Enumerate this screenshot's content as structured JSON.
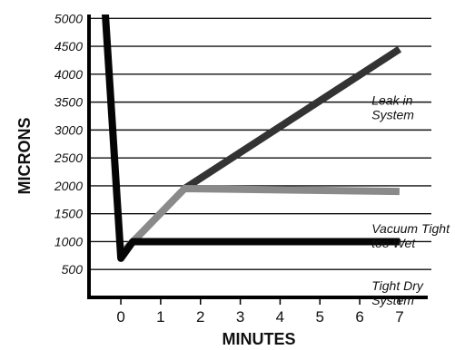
{
  "chart_data": {
    "type": "line",
    "title": "",
    "xlabel": "MINUTES",
    "ylabel": "MICRONS",
    "xlim": [
      -0.8,
      7.8
    ],
    "ylim": [
      0,
      5200
    ],
    "x_ticks": [
      0,
      1,
      2,
      3,
      4,
      5,
      6,
      7
    ],
    "y_ticks": [
      500,
      1000,
      1500,
      2000,
      2500,
      3000,
      3500,
      4000,
      4500,
      5000
    ],
    "grid": "horizontal",
    "series": [
      {
        "color": "#333333",
        "points": [
          [
            1.6,
            1950
          ],
          [
            7.0,
            4450
          ]
        ]
      },
      {
        "color": "#8a8a8a",
        "points": [
          [
            0.1,
            850
          ],
          [
            1.6,
            1950
          ],
          [
            7.0,
            1900
          ]
        ]
      },
      {
        "color": "#050505",
        "points": [
          [
            -0.4,
            5200
          ],
          [
            0.0,
            700
          ],
          [
            0.3,
            1000
          ],
          [
            7.0,
            1000
          ]
        ]
      }
    ],
    "annotations": [
      {
        "lines": [
          "Leak in",
          "System"
        ],
        "x": 6.3,
        "y": 3450
      },
      {
        "lines": [
          "Vacuum Tight",
          "too Wet"
        ],
        "x": 6.3,
        "y": 1150
      },
      {
        "lines": [
          "Tight Dry",
          "System"
        ],
        "x": 6.3,
        "y": 130
      }
    ]
  }
}
